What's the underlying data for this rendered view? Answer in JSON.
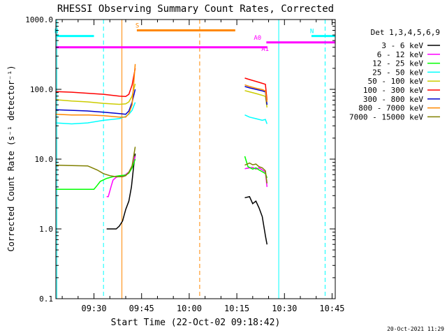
{
  "chart_data": {
    "type": "line",
    "title": "RHESSI Observing Summary Count Rates, Corrected",
    "xlabel": "Start Time (22-Oct-02 09:18:42)",
    "ylabel": "Corrected Count Rate (s⁻¹ detector⁻¹)",
    "yscale": "log",
    "ylim": [
      0.1,
      1000
    ],
    "xlim_minutes_after_0918": [
      0,
      88
    ],
    "yticks": [
      {
        "value": 1000,
        "label": "1000.0"
      },
      {
        "value": 100,
        "label": "100.0"
      },
      {
        "value": 10,
        "label": "10.0"
      },
      {
        "value": 1,
        "label": "1.0"
      },
      {
        "value": 0.1,
        "label": "0.1"
      }
    ],
    "xticks": [
      {
        "min": 12,
        "label": "09:30"
      },
      {
        "min": 27,
        "label": "09:45"
      },
      {
        "min": 42,
        "label": "10:00"
      },
      {
        "min": 57,
        "label": "10:15"
      },
      {
        "min": 72,
        "label": "10:30"
      },
      {
        "min": 87,
        "label": "10:45"
      }
    ],
    "legend_title": "Det 1,3,4,5,6,9",
    "legend_position": "right",
    "grid": false,
    "timestamp": "20-Oct-2021 11:29",
    "series": [
      {
        "name": "3 - 6 keV",
        "color": "#000000",
        "segments": [
          [
            [
              16,
              1.0
            ],
            [
              19,
              1.0
            ],
            [
              20,
              1.1
            ],
            [
              21,
              1.3
            ],
            [
              22,
              1.9
            ],
            [
              23,
              2.5
            ],
            [
              23.8,
              4
            ],
            [
              24.5,
              8
            ],
            [
              25,
              12
            ]
          ],
          [
            [
              59.5,
              2.8
            ],
            [
              61,
              2.9
            ],
            [
              62,
              2.3
            ],
            [
              63,
              2.5
            ],
            [
              64,
              2.0
            ],
            [
              65,
              1.5
            ],
            [
              66,
              0.8
            ],
            [
              66.5,
              0.6
            ]
          ]
        ]
      },
      {
        "name": "6 - 12 keV",
        "color": "#ff00ff",
        "segments": [
          [
            [
              16,
              2.9
            ],
            [
              16.5,
              2.9
            ],
            [
              17,
              3.5
            ],
            [
              17.5,
              4.2
            ],
            [
              18,
              5.0
            ],
            [
              19,
              5.5
            ],
            [
              20,
              5.7
            ],
            [
              21,
              5.8
            ],
            [
              22,
              6.0
            ],
            [
              22.5,
              6.3
            ],
            [
              23,
              6.5
            ],
            [
              24,
              8
            ],
            [
              25,
              11
            ]
          ],
          [
            [
              59.5,
              7.3
            ],
            [
              61,
              7.5
            ],
            [
              62,
              7.6
            ],
            [
              63,
              7.2
            ],
            [
              64,
              7.5
            ],
            [
              65,
              7.0
            ],
            [
              66,
              6.5
            ],
            [
              66.5,
              4.0
            ]
          ]
        ]
      },
      {
        "name": "12 - 25 keV",
        "color": "#00ff00",
        "segments": [
          [
            [
              0,
              3.7
            ],
            [
              12,
              3.7
            ],
            [
              13,
              4.2
            ],
            [
              14,
              4.8
            ],
            [
              16,
              5.3
            ],
            [
              18,
              5.6
            ],
            [
              20,
              5.8
            ],
            [
              22,
              5.9
            ],
            [
              23,
              6.3
            ],
            [
              24,
              7.5
            ],
            [
              25,
              10
            ]
          ],
          [
            [
              59.5,
              11
            ],
            [
              60.5,
              7.8
            ],
            [
              62,
              7.2
            ],
            [
              63,
              7.5
            ],
            [
              64,
              7.0
            ],
            [
              65,
              6.6
            ],
            [
              66,
              6.2
            ],
            [
              66.5,
              5.4
            ]
          ]
        ]
      },
      {
        "name": "25 - 50 keV",
        "color": "#00ffff",
        "segments": [
          [
            [
              0,
              33
            ],
            [
              5,
              32
            ],
            [
              10,
              33
            ],
            [
              15,
              36
            ],
            [
              20,
              38
            ],
            [
              22,
              41
            ],
            [
              23,
              44
            ],
            [
              24,
              50
            ],
            [
              25,
              65
            ]
          ],
          [
            [
              59.5,
              43
            ],
            [
              61,
              40
            ],
            [
              63,
              38
            ],
            [
              65,
              36
            ],
            [
              66,
              37
            ],
            [
              66.5,
              32
            ]
          ]
        ]
      },
      {
        "name": "50 - 100 keV",
        "color": "#cccc00",
        "segments": [
          [
            [
              0,
              71
            ],
            [
              5,
              68
            ],
            [
              10,
              66
            ],
            [
              15,
              63
            ],
            [
              20,
              61
            ],
            [
              22,
              62
            ],
            [
              23,
              66
            ],
            [
              24,
              80
            ],
            [
              25,
              120
            ]
          ],
          [
            [
              59.5,
              96
            ],
            [
              61,
              92
            ],
            [
              63,
              87
            ],
            [
              65,
              82
            ],
            [
              66,
              79
            ],
            [
              66.5,
              55
            ]
          ]
        ]
      },
      {
        "name": "100 - 300 keV",
        "color": "#ff0000",
        "segments": [
          [
            [
              0,
              93
            ],
            [
              5,
              91
            ],
            [
              10,
              88
            ],
            [
              15,
              85
            ],
            [
              20,
              80
            ],
            [
              22,
              79
            ],
            [
              23,
              85
            ],
            [
              24,
              115
            ],
            [
              25,
              200
            ]
          ],
          [
            [
              59.5,
              145
            ],
            [
              61,
              138
            ],
            [
              63,
              130
            ],
            [
              65,
              122
            ],
            [
              66,
              118
            ],
            [
              66.5,
              70
            ]
          ]
        ]
      },
      {
        "name": "300 - 800 keV",
        "color": "#0000cc",
        "segments": [
          [
            [
              0,
              51
            ],
            [
              5,
              50
            ],
            [
              10,
              49
            ],
            [
              15,
              47
            ],
            [
              20,
              45
            ],
            [
              22,
              44
            ],
            [
              23,
              49
            ],
            [
              24,
              65
            ],
            [
              25,
              100
            ]
          ],
          [
            [
              59.5,
              110
            ],
            [
              61,
              105
            ],
            [
              63,
              100
            ],
            [
              65,
              95
            ],
            [
              66,
              92
            ],
            [
              66.5,
              60
            ]
          ]
        ]
      },
      {
        "name": "800 - 7000 keV",
        "color": "#ff8800",
        "segments": [
          [
            [
              0,
              44
            ],
            [
              5,
              43
            ],
            [
              10,
              43
            ],
            [
              15,
              42
            ],
            [
              20,
              40
            ],
            [
              22,
              40
            ],
            [
              23,
              45
            ],
            [
              24,
              60
            ],
            [
              25,
              230
            ]
          ],
          [
            [
              59.5,
              116
            ],
            [
              61,
              110
            ],
            [
              63,
              104
            ],
            [
              65,
              99
            ],
            [
              66,
              95
            ],
            [
              66.5,
              66
            ]
          ]
        ]
      },
      {
        "name": "7000 - 15000 keV",
        "color": "#808000",
        "segments": [
          [
            [
              0,
              8.2
            ],
            [
              5,
              8.1
            ],
            [
              10,
              8.0
            ],
            [
              13,
              7.0
            ],
            [
              15,
              6.2
            ],
            [
              17,
              5.8
            ],
            [
              19,
              5.6
            ],
            [
              21,
              5.6
            ],
            [
              22,
              5.8
            ],
            [
              23,
              6.5
            ],
            [
              24,
              8
            ],
            [
              25,
              15
            ]
          ],
          [
            [
              59.5,
              8.2
            ],
            [
              61,
              8.8
            ],
            [
              62,
              8.3
            ],
            [
              63,
              8.5
            ],
            [
              64,
              7.8
            ],
            [
              65,
              7.5
            ],
            [
              66,
              6.8
            ],
            [
              66.5,
              4.5
            ]
          ]
        ]
      }
    ],
    "flag_bars": [
      {
        "label": "N",
        "color": "#00ffff",
        "y": 580,
        "from": 0,
        "to": 12
      },
      {
        "label": "N",
        "color": "#00ffff",
        "y": 580,
        "from": 80.5,
        "to": 88
      },
      {
        "label": "S",
        "color": "#ff8800",
        "y": 700,
        "from": 25.5,
        "to": 56.5
      },
      {
        "label": "A0",
        "color": "#ff00ff",
        "y": 470,
        "from": 66.3,
        "to": 88
      },
      {
        "label": "A1",
        "color": "#ff00ff",
        "y": 400,
        "from": 0,
        "to": 66.5
      }
    ],
    "vertical_markers": [
      {
        "min": 0.3,
        "color": "#00ffff",
        "style": "solid"
      },
      {
        "min": 15.0,
        "color": "#00ffff",
        "style": "dashed"
      },
      {
        "min": 20.8,
        "color": "#ff8800",
        "style": "solid"
      },
      {
        "min": 45.3,
        "color": "#ff8800",
        "style": "dashed"
      },
      {
        "min": 70.2,
        "color": "#00ffff",
        "style": "solid"
      },
      {
        "min": 84.8,
        "color": "#00ffff",
        "style": "dashed"
      }
    ]
  }
}
